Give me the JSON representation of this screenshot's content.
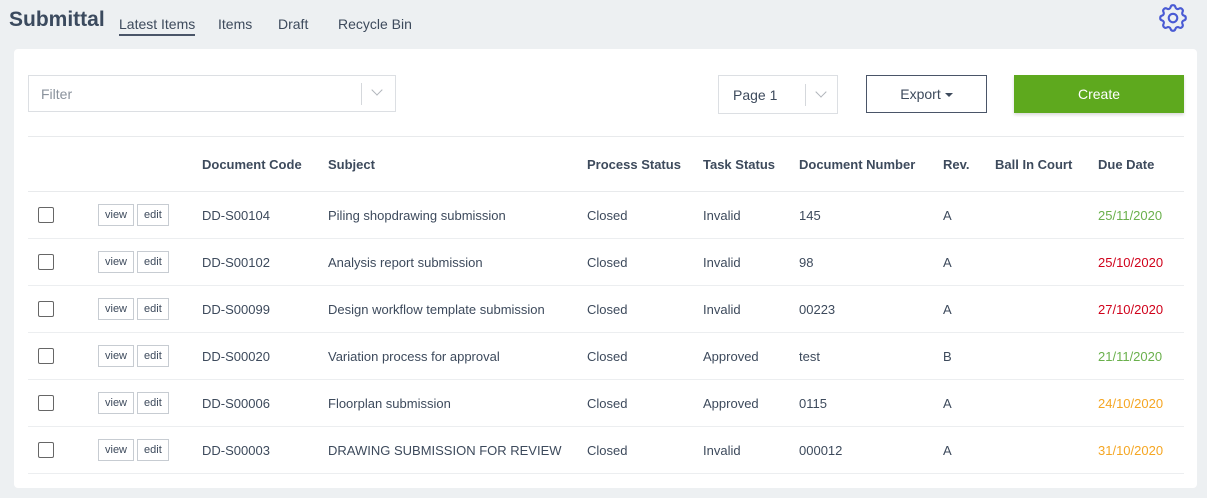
{
  "header": {
    "title": "Submittal",
    "tabs": [
      {
        "label": "Latest Items",
        "active": true
      },
      {
        "label": "Items"
      },
      {
        "label": "Draft"
      },
      {
        "label": "Recycle Bin"
      }
    ],
    "settings_icon": "gear-icon"
  },
  "toolbar": {
    "filter_placeholder": "Filter",
    "page_value": "Page 1",
    "export_label": "Export",
    "create_label": "Create",
    "create_color": "#5ea91e"
  },
  "table": {
    "columns": [
      "",
      "",
      "Document Code",
      "Subject",
      "Process Status",
      "Task Status",
      "Document Number",
      "Rev.",
      "Ball In Court",
      "Due Date"
    ],
    "view_label": "view",
    "edit_label": "edit",
    "rows": [
      {
        "code": "DD-S00104",
        "subject": "Piling shopdrawing submission",
        "process": "Closed",
        "task": "Invalid",
        "number": "145",
        "rev": "A",
        "ball": "",
        "due": "25/11/2020",
        "due_color": "#6ab04c"
      },
      {
        "code": "DD-S00102",
        "subject": "Analysis report submission",
        "process": "Closed",
        "task": "Invalid",
        "number": "98",
        "rev": "A",
        "ball": "",
        "due": "25/10/2020",
        "due_color": "#d0021b"
      },
      {
        "code": "DD-S00099",
        "subject": "Design workflow template submission",
        "process": "Closed",
        "task": "Invalid",
        "number": "00223",
        "rev": "A",
        "ball": "",
        "due": "27/10/2020",
        "due_color": "#d0021b"
      },
      {
        "code": "DD-S00020",
        "subject": "Variation process for approval",
        "process": "Closed",
        "task": "Approved",
        "number": "test",
        "rev": "B",
        "ball": "",
        "due": "21/11/2020",
        "due_color": "#6ab04c"
      },
      {
        "code": "DD-S00006",
        "subject": "Floorplan submission",
        "process": "Closed",
        "task": "Approved",
        "number": "0115",
        "rev": "A",
        "ball": "",
        "due": "24/10/2020",
        "due_color": "#f5a623"
      },
      {
        "code": "DD-S00003",
        "subject": "DRAWING SUBMISSION FOR REVIEW",
        "process": "Closed",
        "task": "Invalid",
        "number": "000012",
        "rev": "A",
        "ball": "",
        "due": "31/10/2020",
        "due_color": "#f5a623"
      }
    ]
  }
}
